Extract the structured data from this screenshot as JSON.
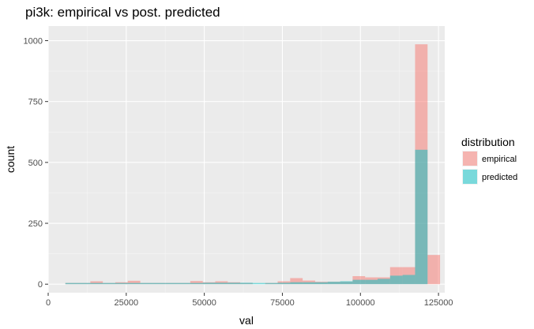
{
  "chart_data": {
    "type": "histogram",
    "title": "pi3k: empirical vs post. predicted",
    "xlabel": "val",
    "ylabel": "count",
    "xlim": [
      0,
      127000
    ],
    "ylim": [
      -35,
      1060
    ],
    "xticks": [
      0,
      25000,
      50000,
      75000,
      100000,
      125000
    ],
    "xtick_labels": [
      "0",
      "25000",
      "50000",
      "75000",
      "100000",
      "125000"
    ],
    "yticks": [
      0,
      250,
      500,
      750,
      1000
    ],
    "ytick_labels": [
      "0",
      "250",
      "500",
      "750",
      "1000"
    ],
    "bin_width": 4000,
    "bin_starts": [
      5500,
      9500,
      13500,
      17500,
      21500,
      25500,
      29500,
      33500,
      37500,
      41500,
      45500,
      49500,
      53500,
      57500,
      61500,
      65500,
      69500,
      73500,
      77500,
      81500,
      85500,
      89500,
      93500,
      97500,
      101500,
      105500,
      109500,
      113500,
      117500,
      121500
    ],
    "legend": {
      "title": "distribution",
      "position": "right"
    },
    "grid": true,
    "series": [
      {
        "name": "empirical",
        "color": "#F8766D",
        "opacity": 0.5,
        "values": [
          5,
          5,
          12,
          5,
          8,
          14,
          5,
          5,
          5,
          5,
          13,
          8,
          12,
          8,
          5,
          0,
          5,
          12,
          25,
          15,
          10,
          10,
          10,
          33,
          28,
          28,
          70,
          70,
          985,
          120
        ]
      },
      {
        "name": "predicted",
        "color": "#00BFC4",
        "opacity": 0.5,
        "values": [
          5,
          5,
          5,
          5,
          5,
          5,
          5,
          5,
          5,
          5,
          5,
          6,
          6,
          6,
          6,
          5,
          5,
          6,
          8,
          8,
          8,
          10,
          12,
          18,
          18,
          22,
          35,
          38,
          552,
          0
        ]
      }
    ]
  }
}
